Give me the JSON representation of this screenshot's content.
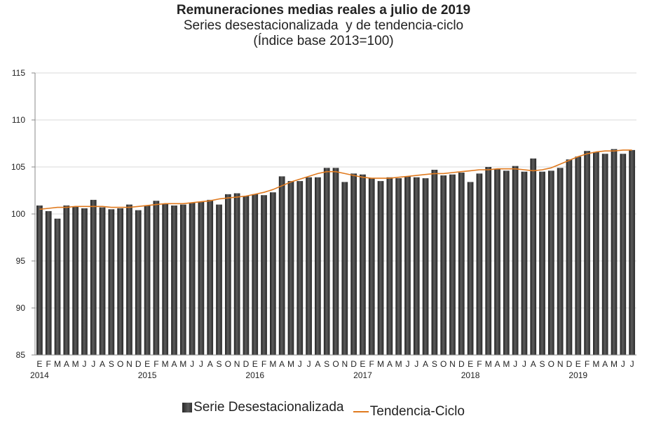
{
  "chart_data": {
    "type": "bar",
    "title": "Remuneraciones medias reales a julio de 2019",
    "subtitle": "Series desestacionalizada  y de tendencia-ciclo",
    "subtitle2": "(Índice base 2013=100)",
    "ylim": [
      85,
      115
    ],
    "yticks": [
      85,
      90,
      95,
      100,
      105,
      110,
      115
    ],
    "month_labels": [
      "E",
      "F",
      "M",
      "A",
      "M",
      "J",
      "J",
      "A",
      "S",
      "O",
      "N",
      "D",
      "E",
      "F",
      "M",
      "A",
      "M",
      "J",
      "J",
      "A",
      "S",
      "O",
      "N",
      "D",
      "E",
      "F",
      "M",
      "A",
      "M",
      "J",
      "J",
      "A",
      "S",
      "O",
      "N",
      "D",
      "E",
      "F",
      "M",
      "A",
      "M",
      "J",
      "J",
      "A",
      "S",
      "O",
      "N",
      "D",
      "E",
      "F",
      "M",
      "A",
      "M",
      "J",
      "J",
      "A",
      "S",
      "O",
      "N",
      "D",
      "E",
      "F",
      "M",
      "A",
      "M",
      "J",
      "J"
    ],
    "year_labels": [
      {
        "label": "2014",
        "index": 0
      },
      {
        "label": "2015",
        "index": 12
      },
      {
        "label": "2016",
        "index": 24
      },
      {
        "label": "2017",
        "index": 36
      },
      {
        "label": "2018",
        "index": 48
      },
      {
        "label": "2019",
        "index": 60
      }
    ],
    "series": [
      {
        "name": "Serie Desestacionalizada",
        "kind": "bar",
        "color": "#3a3a3a",
        "values": [
          100.9,
          100.3,
          99.5,
          100.9,
          100.8,
          100.6,
          101.5,
          100.7,
          100.5,
          100.6,
          101.0,
          100.4,
          100.9,
          101.4,
          101.1,
          100.9,
          101.0,
          101.2,
          101.3,
          101.5,
          101.0,
          102.1,
          102.2,
          101.9,
          102.1,
          102.0,
          102.3,
          104.0,
          103.5,
          103.5,
          103.9,
          103.9,
          104.9,
          104.9,
          103.4,
          104.3,
          104.2,
          103.8,
          103.5,
          103.9,
          103.8,
          104.0,
          103.9,
          103.8,
          104.7,
          104.1,
          104.2,
          104.4,
          103.4,
          104.3,
          105.0,
          104.8,
          104.6,
          105.1,
          104.5,
          105.9,
          104.5,
          104.6,
          104.9,
          105.8,
          106.1,
          106.7,
          106.6,
          106.4,
          106.9,
          106.4,
          106.8
        ]
      },
      {
        "name": "Tendencia-Ciclo",
        "kind": "line",
        "color": "#e07a1f",
        "values": [
          100.5,
          100.6,
          100.7,
          100.7,
          100.8,
          100.8,
          100.8,
          100.8,
          100.7,
          100.7,
          100.7,
          100.8,
          100.9,
          101.0,
          101.1,
          101.1,
          101.1,
          101.2,
          101.3,
          101.4,
          101.6,
          101.7,
          101.8,
          101.9,
          102.1,
          102.3,
          102.6,
          103.0,
          103.4,
          103.7,
          104.0,
          104.3,
          104.5,
          104.5,
          104.3,
          104.1,
          103.9,
          103.8,
          103.8,
          103.8,
          103.9,
          104.0,
          104.1,
          104.2,
          104.3,
          104.3,
          104.4,
          104.5,
          104.6,
          104.7,
          104.7,
          104.8,
          104.8,
          104.8,
          104.7,
          104.6,
          104.7,
          104.9,
          105.3,
          105.7,
          106.1,
          106.4,
          106.6,
          106.7,
          106.7,
          106.8,
          106.8
        ]
      }
    ]
  },
  "legend": {
    "bar_label": "Serie Desestacionalizada",
    "line_label": "Tendencia-Ciclo"
  }
}
